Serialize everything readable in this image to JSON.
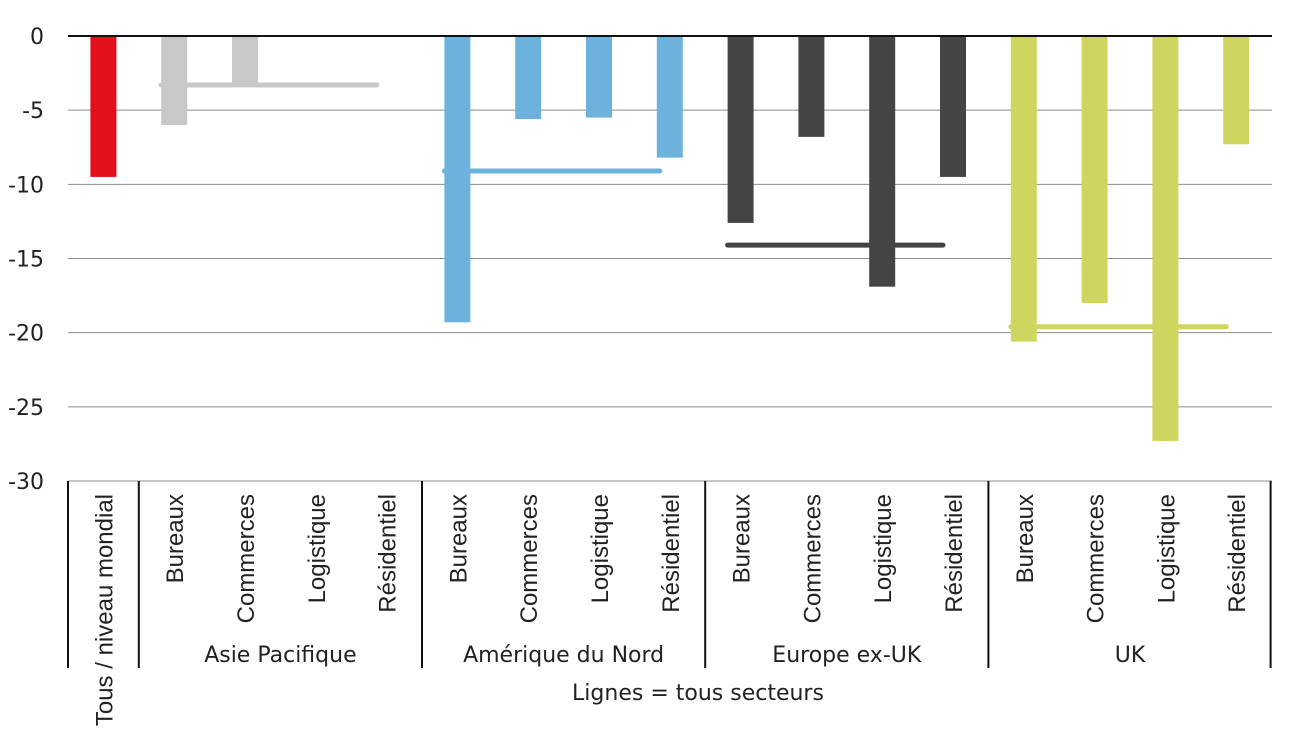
{
  "chart_data": {
    "type": "bar",
    "ylim": [
      -30,
      0
    ],
    "yticks": [
      0,
      -5,
      -10,
      -15,
      -20,
      -25,
      -30
    ],
    "grid": true,
    "global": {
      "label": "Tous / niveau mondial",
      "value": -9.5,
      "color": "#e3101b"
    },
    "groups": [
      {
        "name": "Asie Pacifique",
        "color": "#c8c8c8",
        "categories": [
          "Bureaux",
          "Commerces",
          "Logistique",
          "Résidentiel"
        ],
        "values": [
          -6.0,
          -3.2,
          null,
          null
        ],
        "all_sectors": -3.3
      },
      {
        "name": "Amérique du Nord",
        "color": "#6cb2dd",
        "categories": [
          "Bureaux",
          "Commerces",
          "Logistique",
          "Résidentiel"
        ],
        "values": [
          -19.3,
          -5.6,
          -5.5,
          -8.2
        ],
        "all_sectors": -9.1
      },
      {
        "name": "Europe ex-UK",
        "color": "#444444",
        "categories": [
          "Bureaux",
          "Commerces",
          "Logistique",
          "Résidentiel"
        ],
        "values": [
          -12.6,
          -6.8,
          -16.9,
          -9.5
        ],
        "all_sectors": -14.1
      },
      {
        "name": "UK",
        "color": "#cfd660",
        "categories": [
          "Bureaux",
          "Commerces",
          "Logistique",
          "Résidentiel"
        ],
        "values": [
          -20.6,
          -18.0,
          -27.3,
          -7.3
        ],
        "all_sectors": -19.6
      }
    ],
    "footnote": "Lignes = tous secteurs"
  }
}
